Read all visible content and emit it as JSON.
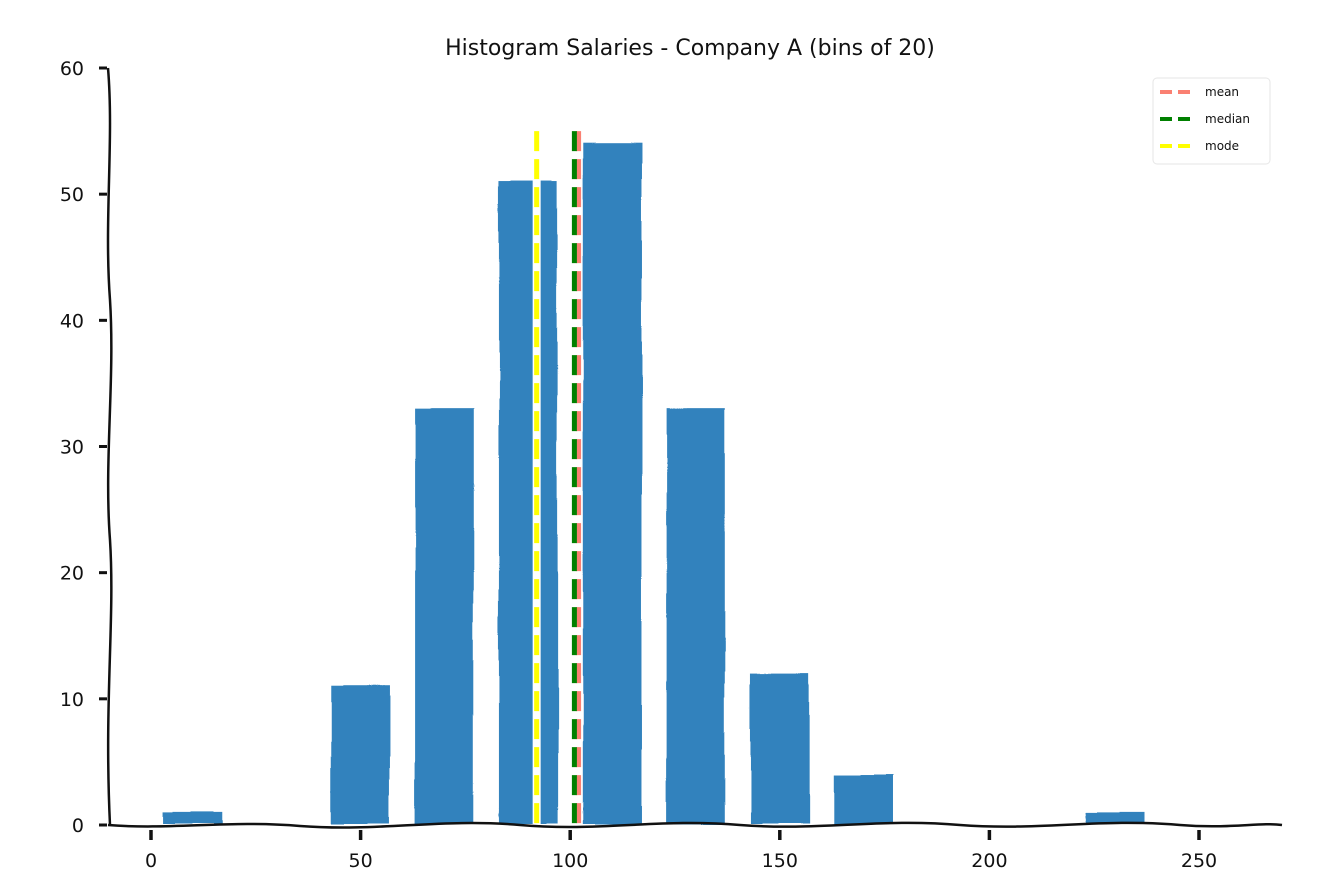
{
  "chart_data": {
    "type": "bar",
    "title": "Histogram Salaries - Company A (bins of 20)",
    "xlabel": "",
    "ylabel": "",
    "xlim": [
      -10,
      270
    ],
    "ylim": [
      0,
      60
    ],
    "grid": false,
    "legend_position": "upper right",
    "x_ticks": [
      0,
      50,
      100,
      150,
      200,
      250
    ],
    "y_ticks": [
      0,
      10,
      20,
      30,
      40,
      50,
      60
    ],
    "bin_width": 20,
    "bins": [
      {
        "start": 0,
        "end": 20,
        "count": 1
      },
      {
        "start": 20,
        "end": 40,
        "count": 0
      },
      {
        "start": 40,
        "end": 60,
        "count": 11
      },
      {
        "start": 60,
        "end": 80,
        "count": 33
      },
      {
        "start": 80,
        "end": 100,
        "count": 51
      },
      {
        "start": 100,
        "end": 120,
        "count": 54
      },
      {
        "start": 120,
        "end": 140,
        "count": 33
      },
      {
        "start": 140,
        "end": 160,
        "count": 12
      },
      {
        "start": 160,
        "end": 180,
        "count": 4
      },
      {
        "start": 180,
        "end": 200,
        "count": 0
      },
      {
        "start": 200,
        "end": 220,
        "count": 0
      },
      {
        "start": 220,
        "end": 240,
        "count": 1
      }
    ],
    "categories": [
      "0-20",
      "20-40",
      "40-60",
      "60-80",
      "80-100",
      "100-120",
      "120-140",
      "140-160",
      "160-180",
      "180-200",
      "200-220",
      "220-240"
    ],
    "values": [
      1,
      0,
      11,
      33,
      51,
      54,
      33,
      12,
      4,
      0,
      0,
      1
    ],
    "bar_color": "#3182bd",
    "reference_lines": [
      {
        "name": "mean",
        "x": 102,
        "color": "#fa8072",
        "style": "dashed"
      },
      {
        "name": "median",
        "x": 101,
        "color": "#008000",
        "style": "dashed"
      },
      {
        "name": "mode",
        "x": 92,
        "color": "#ffff00",
        "style": "dashed"
      }
    ],
    "legend": [
      "mean",
      "median",
      "mode"
    ]
  }
}
